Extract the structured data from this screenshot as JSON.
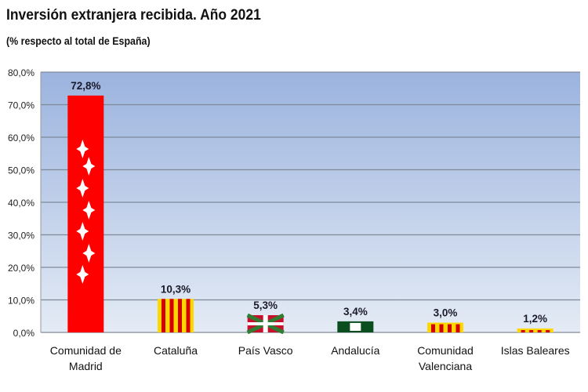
{
  "chart_data": {
    "type": "bar",
    "title": "Inversión extranjera recibida. Año 2021",
    "subtitle": "(% respecto al total de España)",
    "xlabel": "",
    "ylabel": "",
    "categories": [
      [
        "Comunidad de",
        "Madrid"
      ],
      [
        "Cataluña"
      ],
      [
        "País Vasco"
      ],
      [
        "Andalucía"
      ],
      [
        "Comunidad",
        "Valenciana"
      ],
      [
        "Islas Baleares"
      ]
    ],
    "values": [
      72.8,
      10.3,
      5.3,
      3.4,
      3.0,
      1.2
    ],
    "data_labels": [
      "72,8%",
      "10,3%",
      "5,3%",
      "3,4%",
      "3,0%",
      "1,2%"
    ],
    "bar_fills": [
      "madrid-flag",
      "catalonia-flag",
      "basque-flag",
      "andalusia-flag",
      "valencia-flag",
      "balearic-flag"
    ],
    "ylim": [
      0,
      80
    ],
    "yticks": [
      "0,0%",
      "10,0%",
      "20,0%",
      "30,0%",
      "40,0%",
      "50,0%",
      "60,0%",
      "70,0%",
      "80,0%"
    ],
    "grid": true,
    "legend": "none",
    "colors": {
      "plot_top": "#9bb3de",
      "plot_bottom": "#e4ebf5",
      "grid": "#7f8a99"
    }
  }
}
